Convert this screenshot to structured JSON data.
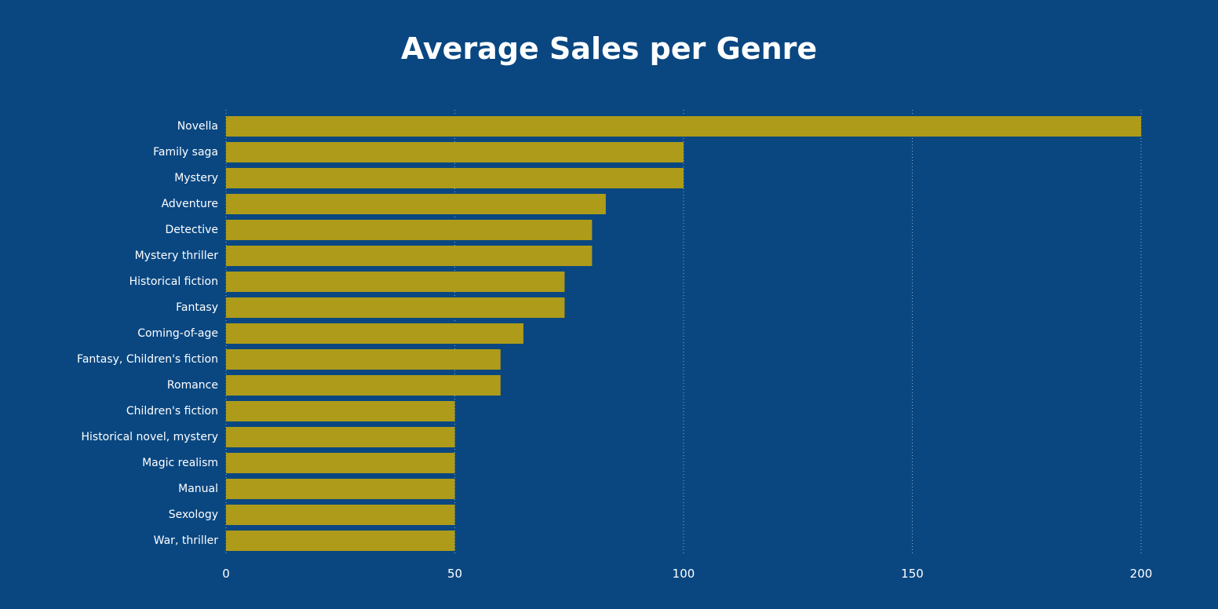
{
  "chart_data": {
    "type": "bar",
    "orientation": "horizontal",
    "title": "Average Sales per Genre",
    "xlabel": "",
    "ylabel": "",
    "categories": [
      "Novella",
      "Family saga",
      "Mystery",
      "Adventure",
      "Detective",
      "Mystery thriller",
      "Historical fiction",
      "Fantasy",
      "Coming-of-age",
      "Fantasy, Children's fiction",
      "Romance",
      "Children's fiction",
      "Historical novel, mystery",
      "Magic realism",
      "Manual",
      "Sexology",
      "War, thriller"
    ],
    "values": [
      200,
      100,
      100,
      83,
      80,
      80,
      74,
      74,
      65,
      60,
      60,
      50,
      50,
      50,
      50,
      50,
      50
    ],
    "xlim": [
      0,
      200
    ],
    "xticks": [
      "0",
      "50",
      "100",
      "150",
      "200"
    ],
    "grid": "vertical dotted",
    "legend": "none",
    "colors": {
      "background": "#0a4781",
      "bar": "#ae9b19",
      "text": "#ffffff",
      "grid": "#8fb0d1"
    }
  }
}
